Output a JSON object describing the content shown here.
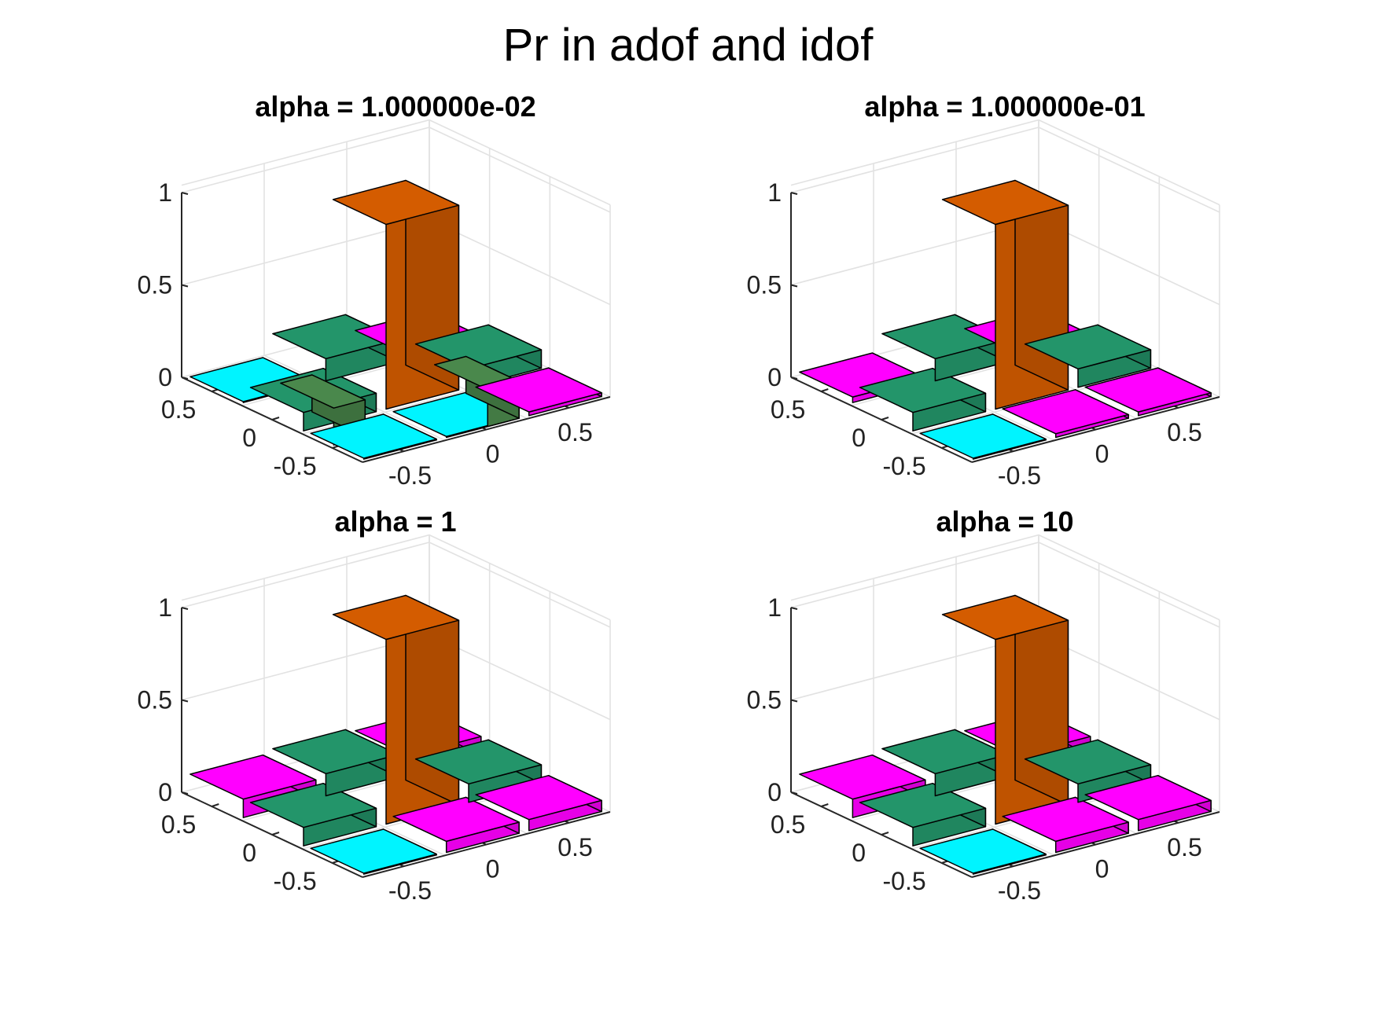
{
  "figure": {
    "title": "Pr in adof and idof"
  },
  "colors": {
    "orange": "#d45c00",
    "green_dark": "#4a884c",
    "green_olive": "#5a8445",
    "green_teal": "#23956a",
    "cyan": "#00f4ff",
    "magenta": "#ff00ff",
    "lavender": "#8f7cff",
    "axis": "#262626",
    "grid": "#e2e2e2"
  },
  "chart_data": [
    {
      "type": "bar3",
      "title": "alpha = 1.000000e-02",
      "xlabel": "",
      "ylabel": "",
      "zlabel": "",
      "x_ticks": [
        "-0.5",
        "0",
        "0.5"
      ],
      "y_ticks": [
        "-0.5",
        "0",
        "0.5"
      ],
      "z_ticks": [
        "0",
        "0.5",
        "1"
      ],
      "zlim": [
        0,
        1
      ],
      "grid": true,
      "bars": [
        {
          "col": 1,
          "row": 2,
          "value": 0.0,
          "color": "cyan"
        },
        {
          "col": 0,
          "row": 2,
          "value": 0.0,
          "color": "cyan"
        },
        {
          "col": 2,
          "row": 2,
          "value": 0.02,
          "color": "magenta"
        },
        {
          "col": 0,
          "row": 1,
          "value": 0.1,
          "color": "green_teal"
        },
        {
          "col": 2,
          "row": 1,
          "value": 0.1,
          "color": "green_teal"
        },
        {
          "col": 1,
          "row": 0,
          "value": 0.12,
          "color": "green_teal"
        },
        {
          "col": 0,
          "row": 0,
          "value": 0.0,
          "color": "cyan"
        },
        {
          "col": 2,
          "row": 0,
          "value": 0.02,
          "color": "magenta"
        },
        {
          "col": 1,
          "row": 1,
          "value": 1.0,
          "color": "orange"
        },
        {
          "col": 0,
          "row": 1.5,
          "value": 0.2,
          "color": "green_dark",
          "dx": 0.5
        },
        {
          "col": 1.5,
          "row": 2,
          "value": 0.2,
          "color": "green_dark",
          "dx": 0.5
        }
      ]
    },
    {
      "type": "bar3",
      "title": "alpha = 1.000000e-01",
      "xlabel": "",
      "ylabel": "",
      "zlabel": "",
      "x_ticks": [
        "-0.5",
        "0",
        "0.5"
      ],
      "y_ticks": [
        "-0.5",
        "0",
        "0.5"
      ],
      "z_ticks": [
        "0",
        "0.5",
        "1"
      ],
      "zlim": [
        0,
        1
      ],
      "grid": true,
      "bars": [
        {
          "col": 1,
          "row": 2,
          "value": 0.02,
          "color": "magenta"
        },
        {
          "col": 0,
          "row": 2,
          "value": 0.0,
          "color": "cyan"
        },
        {
          "col": 2,
          "row": 2,
          "value": 0.02,
          "color": "magenta"
        },
        {
          "col": 0,
          "row": 1,
          "value": 0.1,
          "color": "green_teal"
        },
        {
          "col": 2,
          "row": 1,
          "value": 0.1,
          "color": "green_teal"
        },
        {
          "col": 1,
          "row": 0,
          "value": 0.12,
          "color": "green_teal"
        },
        {
          "col": 0,
          "row": 0,
          "value": 0.03,
          "color": "magenta"
        },
        {
          "col": 2,
          "row": 0,
          "value": 0.03,
          "color": "magenta"
        },
        {
          "col": 1,
          "row": 1,
          "value": 1.0,
          "color": "orange"
        }
      ]
    },
    {
      "type": "bar3",
      "title": "alpha = 1",
      "xlabel": "",
      "ylabel": "",
      "zlabel": "",
      "x_ticks": [
        "-0.5",
        "0",
        "0.5"
      ],
      "y_ticks": [
        "-0.5",
        "0",
        "0.5"
      ],
      "z_ticks": [
        "0",
        "0.5",
        "1"
      ],
      "zlim": [
        0,
        1
      ],
      "grid": true,
      "bars": [
        {
          "col": 1,
          "row": 2,
          "value": 0.06,
          "color": "magenta"
        },
        {
          "col": 0,
          "row": 2,
          "value": 0.0,
          "color": "cyan"
        },
        {
          "col": 2,
          "row": 2,
          "value": 0.06,
          "color": "magenta"
        },
        {
          "col": 0,
          "row": 1,
          "value": 0.1,
          "color": "green_teal"
        },
        {
          "col": 2,
          "row": 1,
          "value": 0.1,
          "color": "green_teal"
        },
        {
          "col": 1,
          "row": 0,
          "value": 0.12,
          "color": "green_teal"
        },
        {
          "col": 0,
          "row": 0,
          "value": 0.1,
          "color": "magenta"
        },
        {
          "col": 2,
          "row": 0,
          "value": 0.1,
          "color": "magenta"
        },
        {
          "col": 1,
          "row": 1,
          "value": 1.0,
          "color": "orange"
        }
      ]
    },
    {
      "type": "bar3",
      "title": "alpha = 10",
      "xlabel": "",
      "ylabel": "",
      "zlabel": "",
      "x_ticks": [
        "-0.5",
        "0",
        "0.5"
      ],
      "y_ticks": [
        "-0.5",
        "0",
        "0.5"
      ],
      "z_ticks": [
        "0",
        "0.5",
        "1"
      ],
      "zlim": [
        0,
        1
      ],
      "grid": true,
      "bars": [
        {
          "col": 1,
          "row": 2,
          "value": 0.06,
          "color": "magenta"
        },
        {
          "col": 0,
          "row": 2,
          "value": 0.0,
          "color": "cyan"
        },
        {
          "col": 2,
          "row": 2,
          "value": 0.06,
          "color": "magenta"
        },
        {
          "col": 0,
          "row": 1,
          "value": 0.1,
          "color": "green_teal"
        },
        {
          "col": 2,
          "row": 1,
          "value": 0.1,
          "color": "green_teal"
        },
        {
          "col": 1,
          "row": 0,
          "value": 0.12,
          "color": "green_teal"
        },
        {
          "col": 0,
          "row": 0,
          "value": 0.1,
          "color": "magenta"
        },
        {
          "col": 2,
          "row": 0,
          "value": 0.1,
          "color": "magenta"
        },
        {
          "col": 1,
          "row": 1,
          "value": 1.0,
          "color": "orange"
        }
      ]
    }
  ]
}
